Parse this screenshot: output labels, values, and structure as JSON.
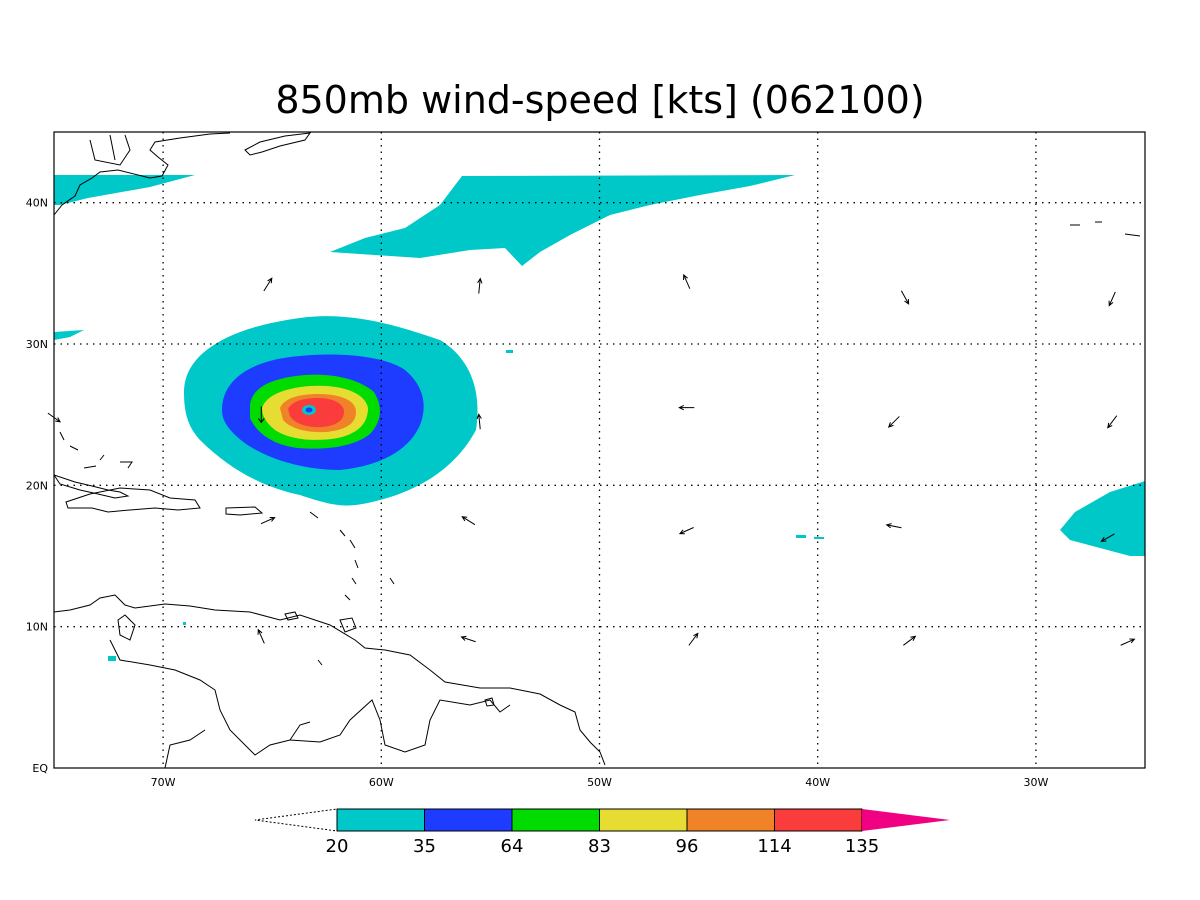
{
  "title": "850mb wind-speed [kts] (062100)",
  "map": {
    "lon_range": [
      -75,
      -25
    ],
    "lat_range": [
      0,
      45
    ],
    "lon_ticks": [
      {
        "lon": -70,
        "label": "70W"
      },
      {
        "lon": -60,
        "label": "60W"
      },
      {
        "lon": -50,
        "label": "50W"
      },
      {
        "lon": -40,
        "label": "40W"
      },
      {
        "lon": -30,
        "label": "30W"
      }
    ],
    "lat_ticks": [
      {
        "lat": 0,
        "label": "EQ"
      },
      {
        "lat": 10,
        "label": "10N"
      },
      {
        "lat": 20,
        "label": "20N"
      },
      {
        "lat": 30,
        "label": "30N"
      },
      {
        "lat": 40,
        "label": "40N"
      }
    ],
    "grid": "dotted",
    "storm_center": {
      "lon": -63.3,
      "lat": 25.3
    },
    "wind_vectors": [
      {
        "lon": -65.2,
        "lat": 34.2,
        "dx": 0.5,
        "dy": 0.8
      },
      {
        "lon": -55.5,
        "lat": 34.1,
        "dx": 0.1,
        "dy": 1.0
      },
      {
        "lon": -46.0,
        "lat": 34.4,
        "dx": -0.4,
        "dy": 0.9
      },
      {
        "lon": -36.0,
        "lat": 33.3,
        "dx": 0.5,
        "dy": -0.9
      },
      {
        "lon": -26.5,
        "lat": 33.2,
        "dx": -0.4,
        "dy": -0.9
      },
      {
        "lon": -55.5,
        "lat": 24.5,
        "dx": -0.1,
        "dy": 1.0
      },
      {
        "lon": -46.0,
        "lat": 25.5,
        "dx": -1.0,
        "dy": 0.0
      },
      {
        "lon": -36.5,
        "lat": 24.5,
        "dx": -0.7,
        "dy": -0.7
      },
      {
        "lon": -26.5,
        "lat": 24.5,
        "dx": -0.6,
        "dy": -0.8
      },
      {
        "lon": -75.0,
        "lat": 24.8,
        "dx": 0.7,
        "dy": -0.5
      },
      {
        "lon": -65.2,
        "lat": 17.5,
        "dx": 0.9,
        "dy": 0.4
      },
      {
        "lon": -56.0,
        "lat": 17.5,
        "dx": -0.8,
        "dy": 0.5
      },
      {
        "lon": -46.0,
        "lat": 16.8,
        "dx": -0.9,
        "dy": -0.4
      },
      {
        "lon": -36.5,
        "lat": 17.1,
        "dx": -1.0,
        "dy": 0.2
      },
      {
        "lon": -26.7,
        "lat": 16.3,
        "dx": -0.9,
        "dy": -0.5
      },
      {
        "lon": -65.5,
        "lat": 9.3,
        "dx": -0.4,
        "dy": 0.9
      },
      {
        "lon": -56.0,
        "lat": 9.1,
        "dx": -0.9,
        "dy": 0.3
      },
      {
        "lon": -45.7,
        "lat": 9.1,
        "dx": 0.6,
        "dy": 0.8
      },
      {
        "lon": -35.8,
        "lat": 9.0,
        "dx": 0.8,
        "dy": 0.6
      },
      {
        "lon": -25.8,
        "lat": 8.9,
        "dx": 0.9,
        "dy": 0.4
      }
    ]
  },
  "colorbar": {
    "colors": [
      "#00c8c8",
      "#1e3cff",
      "#00dc00",
      "#e6dc32",
      "#f08228",
      "#fa3c3c",
      "#f00082"
    ],
    "labels": [
      "20",
      "35",
      "64",
      "83",
      "96",
      "114",
      "135"
    ]
  }
}
